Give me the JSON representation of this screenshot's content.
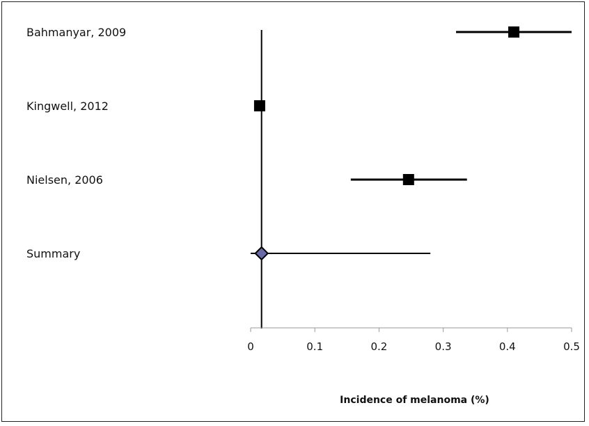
{
  "chart_data": {
    "type": "forest",
    "xlabel": "Incidence of melanoma (%)",
    "xlim": [
      0,
      0.5
    ],
    "xticks": [
      0,
      0.1,
      0.2,
      0.3,
      0.4,
      0.5
    ],
    "xtick_labels": [
      "0",
      "0.1",
      "0.2",
      "0.3",
      "0.4",
      "0.5"
    ],
    "reference_line_x": 0.017,
    "grid": false,
    "studies": [
      {
        "label": "Bahmanyar, 2009",
        "estimate": 0.41,
        "ci_low": 0.32,
        "ci_high": 0.5,
        "marker": "square"
      },
      {
        "label": "Kingwell, 2012",
        "estimate": 0.014,
        "ci_low": 0.014,
        "ci_high": 0.014,
        "marker": "square"
      },
      {
        "label": "Nielsen, 2006",
        "estimate": 0.246,
        "ci_low": 0.156,
        "ci_high": 0.337,
        "marker": "square"
      }
    ],
    "summary": {
      "label": "Summary",
      "estimate": 0.017,
      "ci_low": 0.0,
      "ci_high": 0.28,
      "marker": "diamond",
      "color": "#6a6aa8"
    },
    "colors": {
      "marker": "#000000",
      "summary_fill": "#6a6aa8",
      "line": "#000000"
    }
  }
}
